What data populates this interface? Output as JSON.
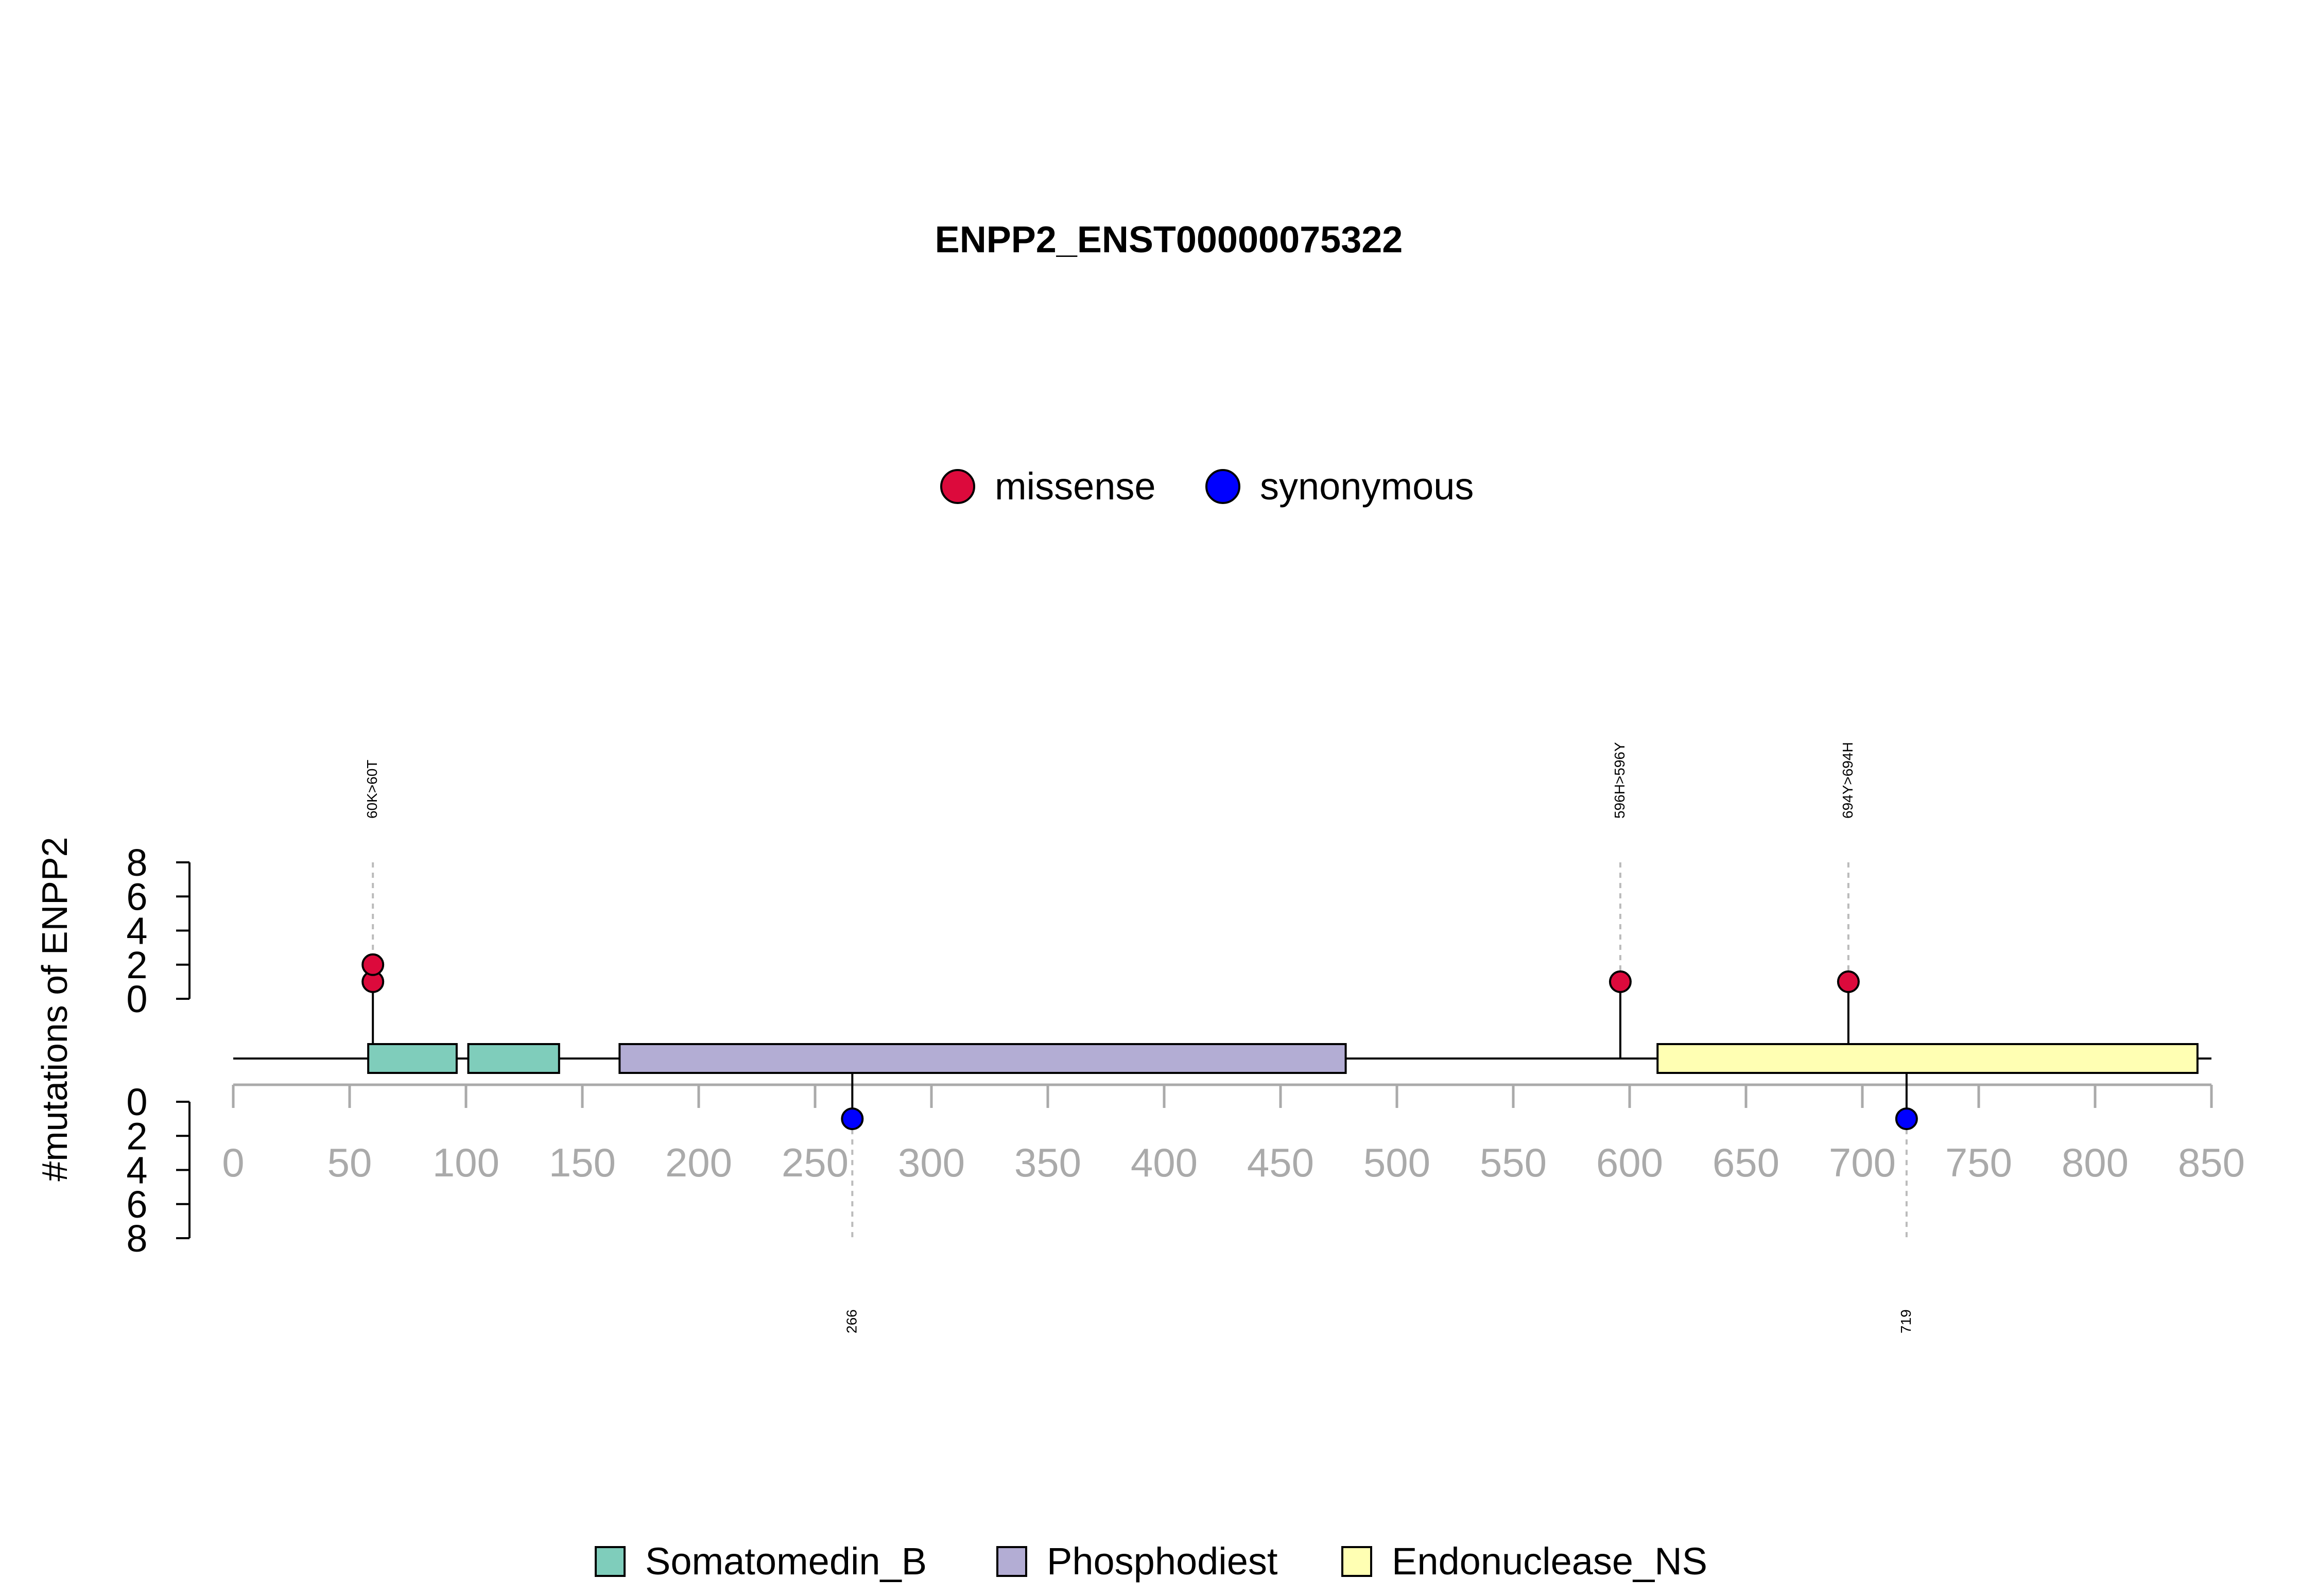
{
  "chart_data": {
    "type": "lollipop",
    "title": "ENPP2_ENST00000075322",
    "ylabel": "#mutations of ENPP2",
    "xlim": [
      0,
      850
    ],
    "x_ticks": [
      "0",
      "50",
      "100",
      "150",
      "200",
      "250",
      "300",
      "350",
      "400",
      "450",
      "500",
      "550",
      "600",
      "650",
      "700",
      "750",
      "800",
      "850"
    ],
    "y_ticks_top": [
      "0",
      "2",
      "4",
      "6",
      "8"
    ],
    "y_ticks_bottom": [
      "0",
      "2",
      "4",
      "6",
      "8"
    ],
    "ylim": [
      0,
      8
    ],
    "protein_length": 845,
    "mutation_legend": [
      {
        "name": "missense",
        "color": "#DC0A3C"
      },
      {
        "name": "synonymous",
        "color": "#0000FF"
      }
    ],
    "domain_legend": [
      {
        "name": "Somatomedin_B",
        "color": "#7FCDBB"
      },
      {
        "name": "Phosphodiest",
        "color": "#B3ADD4"
      },
      {
        "name": "Endonuclease_NS",
        "color": "#FFFFB3"
      }
    ],
    "domains": [
      {
        "name": "Somatomedin_B",
        "start": 58,
        "end": 96,
        "color": "#7FCDBB"
      },
      {
        "name": "Somatomedin_B",
        "start": 101,
        "end": 140,
        "color": "#7FCDBB"
      },
      {
        "name": "Phosphodiest",
        "start": 166,
        "end": 478,
        "color": "#B3ADD4"
      },
      {
        "name": "Endonuclease_NS",
        "start": 612,
        "end": 844,
        "color": "#FFFFB3"
      }
    ],
    "mutations": [
      {
        "position": 60,
        "count": 2,
        "type": "missense",
        "label": "60K>60T",
        "side": "top",
        "color": "#DC0A3C"
      },
      {
        "position": 596,
        "count": 1,
        "type": "missense",
        "label": "596H>596Y",
        "side": "top",
        "color": "#DC0A3C"
      },
      {
        "position": 694,
        "count": 1,
        "type": "missense",
        "label": "694Y>694H",
        "side": "top",
        "color": "#DC0A3C"
      },
      {
        "position": 266,
        "count": 1,
        "type": "synonymous",
        "label": "266",
        "side": "bottom",
        "color": "#0000FF"
      },
      {
        "position": 719,
        "count": 1,
        "type": "synonymous",
        "label": "719",
        "side": "bottom",
        "color": "#0000FF"
      }
    ]
  }
}
